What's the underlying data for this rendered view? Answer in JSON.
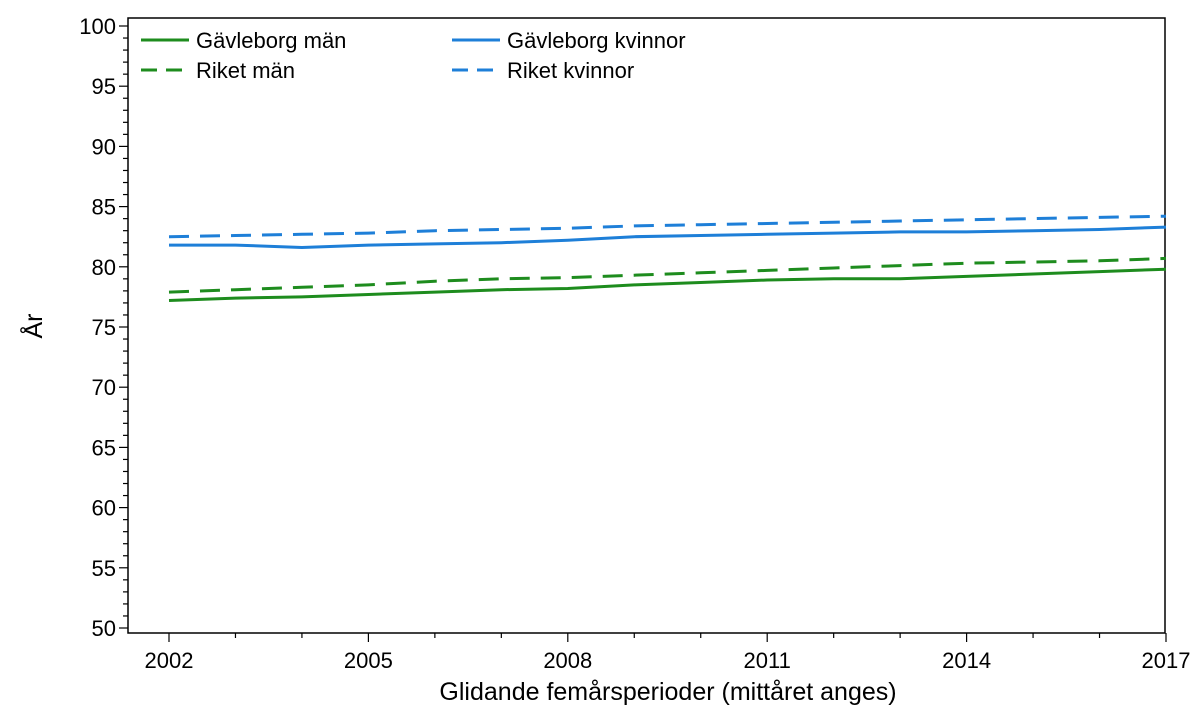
{
  "chart_data": {
    "type": "line",
    "xlabel": "Glidande femårsperioder (mittåret anges)",
    "ylabel": "År",
    "xlim": [
      2002,
      2017
    ],
    "ylim": [
      50,
      100
    ],
    "x_ticks": [
      "2002",
      "2005",
      "2008",
      "2011",
      "2014",
      "2017"
    ],
    "y_ticks": [
      "50",
      "55",
      "60",
      "65",
      "70",
      "75",
      "80",
      "85",
      "90",
      "95",
      "100"
    ],
    "grid": false,
    "legend_position": "top-left",
    "x": [
      2002,
      2003,
      2004,
      2005,
      2006,
      2007,
      2008,
      2009,
      2010,
      2011,
      2012,
      2013,
      2014,
      2015,
      2016,
      2017
    ],
    "series": [
      {
        "name": "Gävleborg män",
        "color": "#1e8c1e",
        "dash": "solid",
        "values": [
          77.2,
          77.4,
          77.5,
          77.7,
          77.9,
          78.1,
          78.2,
          78.5,
          78.7,
          78.9,
          79.0,
          79.0,
          79.2,
          79.4,
          79.6,
          79.8
        ]
      },
      {
        "name": "Riket män",
        "color": "#1e8c1e",
        "dash": "dashed",
        "values": [
          77.9,
          78.1,
          78.3,
          78.5,
          78.8,
          79.0,
          79.1,
          79.3,
          79.5,
          79.7,
          79.9,
          80.1,
          80.3,
          80.4,
          80.5,
          80.7
        ]
      },
      {
        "name": "Gävleborg kvinnor",
        "color": "#1e7fd8",
        "dash": "solid",
        "values": [
          81.8,
          81.8,
          81.6,
          81.8,
          81.9,
          82.0,
          82.2,
          82.5,
          82.6,
          82.7,
          82.8,
          82.9,
          82.9,
          83.0,
          83.1,
          83.3
        ]
      },
      {
        "name": "Riket kvinnor",
        "color": "#1e7fd8",
        "dash": "dashed",
        "values": [
          82.5,
          82.6,
          82.7,
          82.8,
          83.0,
          83.1,
          83.2,
          83.4,
          83.5,
          83.6,
          83.7,
          83.8,
          83.9,
          84.0,
          84.1,
          84.2
        ]
      }
    ]
  }
}
